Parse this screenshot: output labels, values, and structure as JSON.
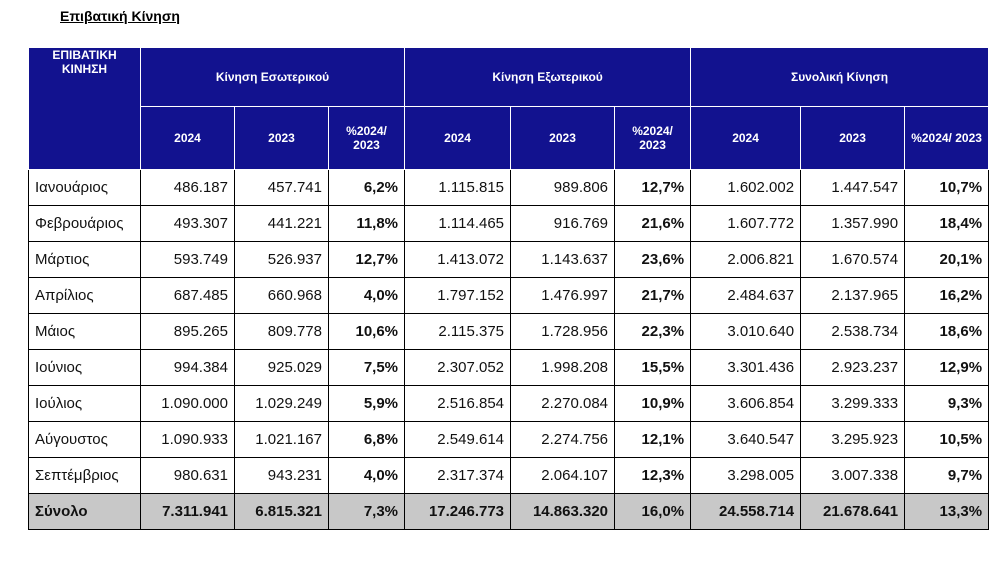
{
  "title": "Επιβατική Κίνηση",
  "table": {
    "stub_header": "ΕΠΙΒΑΤΙΚΗ ΚΙΝΗΣΗ",
    "groups": [
      "Κίνηση Εσωτερικού",
      "Κίνηση Εξωτερικού",
      "Συνολική Κίνηση"
    ],
    "subheaders": [
      "2024",
      "2023",
      "%2024/ 2023"
    ],
    "rows": [
      {
        "month": "Ιανουάριος",
        "dom_2024": "486.187",
        "dom_2023": "457.741",
        "dom_pct": "6,2%",
        "int_2024": "1.115.815",
        "int_2023": "989.806",
        "int_pct": "12,7%",
        "tot_2024": "1.602.002",
        "tot_2023": "1.447.547",
        "tot_pct": "10,7%"
      },
      {
        "month": "Φεβρουάριος",
        "dom_2024": "493.307",
        "dom_2023": "441.221",
        "dom_pct": "11,8%",
        "int_2024": "1.114.465",
        "int_2023": "916.769",
        "int_pct": "21,6%",
        "tot_2024": "1.607.772",
        "tot_2023": "1.357.990",
        "tot_pct": "18,4%"
      },
      {
        "month": "Μάρτιος",
        "dom_2024": "593.749",
        "dom_2023": "526.937",
        "dom_pct": "12,7%",
        "int_2024": "1.413.072",
        "int_2023": "1.143.637",
        "int_pct": "23,6%",
        "tot_2024": "2.006.821",
        "tot_2023": "1.670.574",
        "tot_pct": "20,1%"
      },
      {
        "month": "Απρίλιος",
        "dom_2024": "687.485",
        "dom_2023": "660.968",
        "dom_pct": "4,0%",
        "int_2024": "1.797.152",
        "int_2023": "1.476.997",
        "int_pct": "21,7%",
        "tot_2024": "2.484.637",
        "tot_2023": "2.137.965",
        "tot_pct": "16,2%"
      },
      {
        "month": "Μάιος",
        "dom_2024": "895.265",
        "dom_2023": "809.778",
        "dom_pct": "10,6%",
        "int_2024": "2.115.375",
        "int_2023": "1.728.956",
        "int_pct": "22,3%",
        "tot_2024": "3.010.640",
        "tot_2023": "2.538.734",
        "tot_pct": "18,6%"
      },
      {
        "month": "Ιούνιος",
        "dom_2024": "994.384",
        "dom_2023": "925.029",
        "dom_pct": "7,5%",
        "int_2024": "2.307.052",
        "int_2023": "1.998.208",
        "int_pct": "15,5%",
        "tot_2024": "3.301.436",
        "tot_2023": "2.923.237",
        "tot_pct": "12,9%"
      },
      {
        "month": "Ιούλιος",
        "dom_2024": "1.090.000",
        "dom_2023": "1.029.249",
        "dom_pct": "5,9%",
        "int_2024": "2.516.854",
        "int_2023": "2.270.084",
        "int_pct": "10,9%",
        "tot_2024": "3.606.854",
        "tot_2023": "3.299.333",
        "tot_pct": "9,3%"
      },
      {
        "month": "Αύγουστος",
        "dom_2024": "1.090.933",
        "dom_2023": "1.021.167",
        "dom_pct": "6,8%",
        "int_2024": "2.549.614",
        "int_2023": "2.274.756",
        "int_pct": "12,1%",
        "tot_2024": "3.640.547",
        "tot_2023": "3.295.923",
        "tot_pct": "10,5%"
      },
      {
        "month": "Σεπτέμβριος",
        "dom_2024": "980.631",
        "dom_2023": "943.231",
        "dom_pct": "4,0%",
        "int_2024": "2.317.374",
        "int_2023": "2.064.107",
        "int_pct": "12,3%",
        "tot_2024": "3.298.005",
        "tot_2023": "3.007.338",
        "tot_pct": "9,7%"
      }
    ],
    "total": {
      "month": "Σύνολο",
      "dom_2024": "7.311.941",
      "dom_2023": "6.815.321",
      "dom_pct": "7,3%",
      "int_2024": "17.246.773",
      "int_2023": "14.863.320",
      "int_pct": "16,0%",
      "tot_2024": "24.558.714",
      "tot_2023": "21.678.641",
      "tot_pct": "13,3%"
    }
  },
  "colors": {
    "header_bg": "#12128f",
    "header_text": "#ffffff",
    "total_bg": "#c8c8c8",
    "total_text": "#1a1aff"
  }
}
